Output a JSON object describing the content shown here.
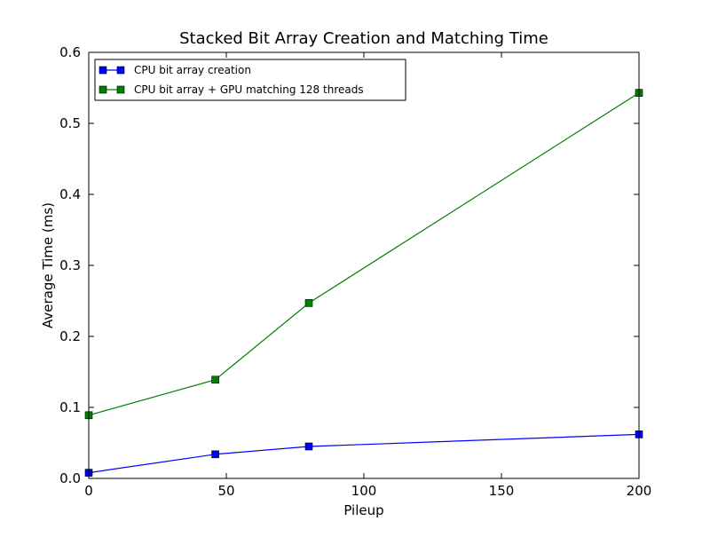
{
  "chart_data": {
    "type": "line",
    "title": "Stacked Bit Array Creation and Matching Time",
    "xlabel": "Pileup",
    "ylabel": "Average Time (ms)",
    "xlim": [
      0,
      200
    ],
    "ylim": [
      0,
      0.6
    ],
    "xticks": [
      0,
      50,
      100,
      150,
      200
    ],
    "xtick_labels": [
      "0",
      "50",
      "100",
      "150",
      "200"
    ],
    "yticks": [
      0.0,
      0.1,
      0.2,
      0.3,
      0.4,
      0.5,
      0.6
    ],
    "ytick_labels": [
      "0.0",
      "0.1",
      "0.2",
      "0.3",
      "0.4",
      "0.5",
      "0.6"
    ],
    "grid": false,
    "legend_position": "top-left",
    "series": [
      {
        "name": "CPU bit array creation",
        "color": "#0000ff",
        "marker": "square",
        "x": [
          0,
          46,
          80,
          200
        ],
        "y": [
          0.008,
          0.034,
          0.045,
          0.062
        ]
      },
      {
        "name": "CPU bit array + GPU matching 128 threads",
        "color": "#008000",
        "marker": "square",
        "x": [
          0,
          46,
          80,
          200
        ],
        "y": [
          0.089,
          0.139,
          0.247,
          0.543
        ]
      }
    ]
  }
}
